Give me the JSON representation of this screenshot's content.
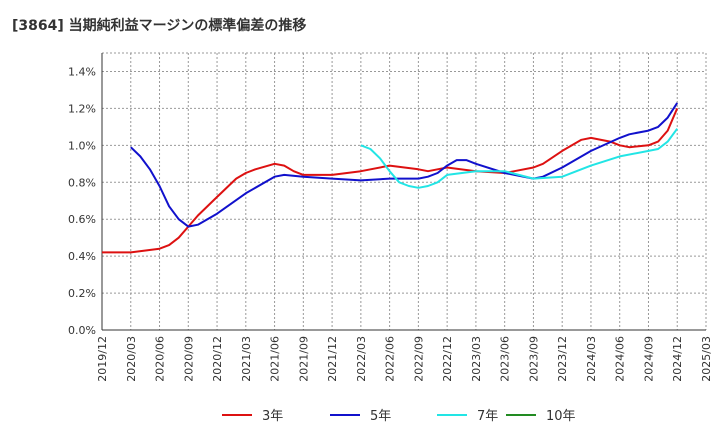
{
  "chart_data": {
    "type": "line",
    "title": "[3864]  当期純利益マージンの標準偏差の推移",
    "xlabel": "",
    "ylabel": "",
    "ylim": [
      0,
      1.5
    ],
    "yticks": [
      "0.0%",
      "0.2%",
      "0.4%",
      "0.6%",
      "0.8%",
      "1.0%",
      "1.2%",
      "1.4%"
    ],
    "ytick_values": [
      0,
      0.2,
      0.4,
      0.6,
      0.8,
      1.0,
      1.2,
      1.4
    ],
    "xticks": [
      "2019/12",
      "2020/03",
      "2020/06",
      "2020/09",
      "2020/12",
      "2021/03",
      "2021/06",
      "2021/09",
      "2021/12",
      "2022/03",
      "2022/06",
      "2022/09",
      "2022/12",
      "2023/03",
      "2023/06",
      "2023/09",
      "2023/12",
      "2024/03",
      "2024/06",
      "2024/09",
      "2024/12",
      "2025/03"
    ],
    "grid": true,
    "legend_position": "bottom",
    "series": [
      {
        "name": "3年",
        "color": "#dd1111",
        "points": [
          [
            "2019/12",
            0.42
          ],
          [
            "2020/03",
            0.42
          ],
          [
            "2020/06",
            0.44
          ],
          [
            "2020/07",
            0.46
          ],
          [
            "2020/08",
            0.5
          ],
          [
            "2020/09",
            0.56
          ],
          [
            "2020/10",
            0.62
          ],
          [
            "2020/12",
            0.72
          ],
          [
            "2021/02",
            0.82
          ],
          [
            "2021/03",
            0.85
          ],
          [
            "2021/04",
            0.87
          ],
          [
            "2021/06",
            0.9
          ],
          [
            "2021/07",
            0.89
          ],
          [
            "2021/08",
            0.86
          ],
          [
            "2021/09",
            0.84
          ],
          [
            "2021/12",
            0.84
          ],
          [
            "2022/03",
            0.86
          ],
          [
            "2022/06",
            0.89
          ],
          [
            "2022/09",
            0.87
          ],
          [
            "2022/10",
            0.86
          ],
          [
            "2022/11",
            0.87
          ],
          [
            "2022/12",
            0.88
          ],
          [
            "2023/03",
            0.86
          ],
          [
            "2023/06",
            0.85
          ],
          [
            "2023/07",
            0.86
          ],
          [
            "2023/09",
            0.88
          ],
          [
            "2023/10",
            0.9
          ],
          [
            "2023/12",
            0.97
          ],
          [
            "2024/02",
            1.03
          ],
          [
            "2024/03",
            1.04
          ],
          [
            "2024/05",
            1.02
          ],
          [
            "2024/06",
            1.0
          ],
          [
            "2024/07",
            0.99
          ],
          [
            "2024/09",
            1.0
          ],
          [
            "2024/10",
            1.02
          ],
          [
            "2024/11",
            1.08
          ],
          [
            "2024/12",
            1.2
          ]
        ]
      },
      {
        "name": "5年",
        "color": "#1111cc",
        "points": [
          [
            "2020/03",
            0.99
          ],
          [
            "2020/04",
            0.94
          ],
          [
            "2020/05",
            0.87
          ],
          [
            "2020/06",
            0.78
          ],
          [
            "2020/07",
            0.67
          ],
          [
            "2020/08",
            0.6
          ],
          [
            "2020/09",
            0.56
          ],
          [
            "2020/10",
            0.57
          ],
          [
            "2020/12",
            0.63
          ],
          [
            "2021/03",
            0.74
          ],
          [
            "2021/06",
            0.83
          ],
          [
            "2021/07",
            0.84
          ],
          [
            "2021/09",
            0.83
          ],
          [
            "2021/12",
            0.82
          ],
          [
            "2022/03",
            0.81
          ],
          [
            "2022/06",
            0.82
          ],
          [
            "2022/09",
            0.82
          ],
          [
            "2022/10",
            0.83
          ],
          [
            "2022/11",
            0.85
          ],
          [
            "2022/12",
            0.89
          ],
          [
            "2023/01",
            0.92
          ],
          [
            "2023/02",
            0.92
          ],
          [
            "2023/03",
            0.9
          ],
          [
            "2023/06",
            0.85
          ],
          [
            "2023/09",
            0.82
          ],
          [
            "2023/10",
            0.83
          ],
          [
            "2023/12",
            0.88
          ],
          [
            "2024/03",
            0.97
          ],
          [
            "2024/06",
            1.04
          ],
          [
            "2024/07",
            1.06
          ],
          [
            "2024/09",
            1.08
          ],
          [
            "2024/10",
            1.1
          ],
          [
            "2024/11",
            1.15
          ],
          [
            "2024/12",
            1.23
          ]
        ]
      },
      {
        "name": "7年",
        "color": "#22e5e5",
        "points": [
          [
            "2022/03",
            1.0
          ],
          [
            "2022/04",
            0.98
          ],
          [
            "2022/05",
            0.93
          ],
          [
            "2022/06",
            0.86
          ],
          [
            "2022/07",
            0.8
          ],
          [
            "2022/08",
            0.78
          ],
          [
            "2022/09",
            0.77
          ],
          [
            "2022/10",
            0.78
          ],
          [
            "2022/11",
            0.8
          ],
          [
            "2022/12",
            0.84
          ],
          [
            "2023/03",
            0.86
          ],
          [
            "2023/06",
            0.86
          ],
          [
            "2023/09",
            0.82
          ],
          [
            "2023/12",
            0.83
          ],
          [
            "2024/03",
            0.89
          ],
          [
            "2024/06",
            0.94
          ],
          [
            "2024/09",
            0.97
          ],
          [
            "2024/10",
            0.98
          ],
          [
            "2024/11",
            1.02
          ],
          [
            "2024/12",
            1.09
          ]
        ]
      },
      {
        "name": "10年",
        "color": "#228b22",
        "points": []
      }
    ]
  }
}
